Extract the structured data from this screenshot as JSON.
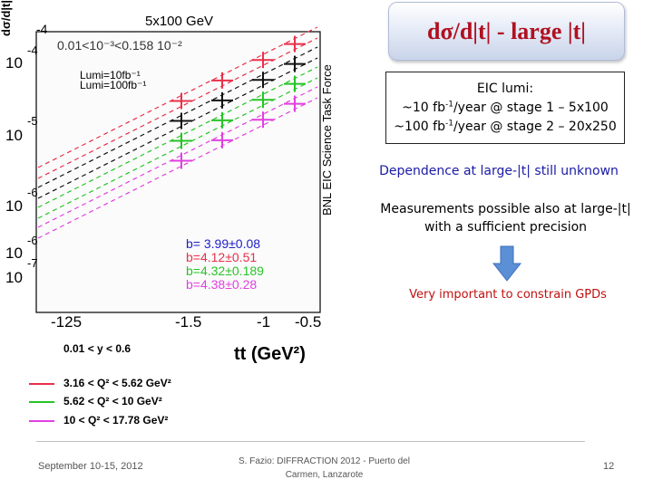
{
  "slide": {
    "title": "dσ/d|t| - large |t|",
    "panel_title": "5x100 GeV",
    "y_axis_label": "dσ/d|t|",
    "watermark": "BNL EIC Science Task Force",
    "x_axis_label": "tt (GeV²)",
    "y_range_label": "0.01 < y < 0.6",
    "x_range_label": "0.01<10⁻³<0.158 10⁻²",
    "top_exponent": "-4",
    "lumi_note_1": "Lumi=10fb⁻¹",
    "lumi_note_2": "Lumi=100fb⁻¹",
    "x_ticks": [
      "-125",
      "-1.5",
      "-1",
      "-0.5"
    ],
    "y_ticks": [
      {
        "text": "-4"
      },
      {
        "text": "10"
      },
      {
        "text": "-5"
      },
      {
        "text": "10"
      },
      {
        "text": "-6"
      },
      {
        "text": "10"
      },
      {
        "text": "-6"
      },
      {
        "text": "10"
      },
      {
        "text": "-7"
      },
      {
        "text": "10"
      }
    ],
    "fit": [
      {
        "text": "b= 3.99±0.08",
        "color": "#1e1ec8"
      },
      {
        "text": "b=4.12±0.51",
        "color": "#e8304a"
      },
      {
        "text": "b=4.32±0.189",
        "color": "#26c426"
      },
      {
        "text": "b=4.38±0.28",
        "color": "#e040e0"
      }
    ],
    "legend": [
      {
        "label": "3.16 < Q² < 5.62 GeV²",
        "color": "#e8304a"
      },
      {
        "label": "5.62 < Q² < 10 GeV²",
        "color": "#26c426"
      },
      {
        "label": "10 < Q² < 17.78 GeV²",
        "color": "#e040e0"
      }
    ],
    "lumi_box": {
      "heading": "EIC lumi:",
      "line1_a": "~10 fb",
      "line1_sup": "-1",
      "line1_b": "/year @ stage 1 – 5x100",
      "line2_a": "~100 fb",
      "line2_sup": "-1",
      "line2_b": "/year @ stage 2 – 20x250"
    },
    "dependence_text": "Dependence at large-|t| still unknown",
    "measurements_text_1": "Measurements possible also at large-|t|",
    "measurements_text_2": "with a sufficient precision",
    "very_important_text": "Very important to constrain GPDs"
  },
  "footer": {
    "date": "September 10-15, 2012",
    "talk_line1": "S. Fazio: DIFFRACTION 2012 - Puerto del",
    "talk_line2": "Carmen, Lanzarote",
    "page": "12"
  },
  "colors": {
    "title_red": "#b01020",
    "blue_text": "#1a1aa8",
    "red_text": "#c01010",
    "arrow_blue": "#5b8fd6"
  }
}
